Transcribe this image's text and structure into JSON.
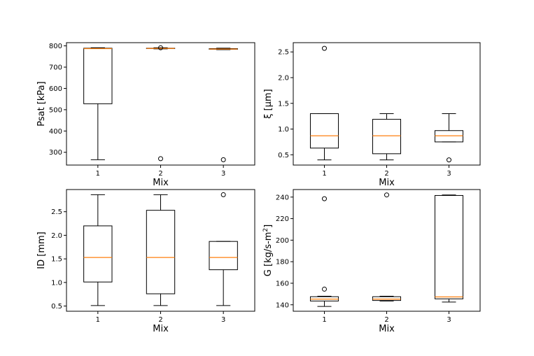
{
  "chart_data": [
    {
      "type": "box",
      "xlabel": "Mix",
      "ylabel": "Psat [kPa]",
      "categories": [
        "1",
        "2",
        "3"
      ],
      "ylim": [
        240,
        815
      ],
      "yticks": [
        300,
        400,
        500,
        600,
        700,
        800
      ],
      "ytick_labels": [
        "300",
        "400",
        "500",
        "600",
        "700",
        "800"
      ],
      "boxes": [
        {
          "whislo": 265,
          "q1": 528,
          "median": 787,
          "q3": 789,
          "whishi": 791,
          "fliers": []
        },
        {
          "whislo": 786,
          "q1": 787,
          "median": 788,
          "q3": 789,
          "whishi": 791,
          "fliers": [
            270,
            791
          ]
        },
        {
          "whislo": 782,
          "q1": 784,
          "median": 785,
          "q3": 787,
          "whishi": 789,
          "fliers": [
            265
          ]
        }
      ]
    },
    {
      "type": "box",
      "xlabel": "Mix",
      "ylabel": "ξ  [μm]",
      "categories": [
        "1",
        "2",
        "3"
      ],
      "ylim": [
        0.3,
        2.68
      ],
      "yticks": [
        0.5,
        1.0,
        1.5,
        2.0,
        2.5
      ],
      "ytick_labels": [
        "0.5",
        "1.0",
        "1.5",
        "2.0",
        "2.5"
      ],
      "boxes": [
        {
          "whislo": 0.4,
          "q1": 0.63,
          "median": 0.87,
          "q3": 1.3,
          "whishi": 1.3,
          "fliers": [
            2.57
          ]
        },
        {
          "whislo": 0.4,
          "q1": 0.52,
          "median": 0.87,
          "q3": 1.19,
          "whishi": 1.3,
          "fliers": []
        },
        {
          "whislo": 0.75,
          "q1": 0.75,
          "median": 0.87,
          "q3": 0.97,
          "whishi": 1.3,
          "fliers": [
            0.4
          ]
        }
      ]
    },
    {
      "type": "box",
      "xlabel": "Mix",
      "ylabel": "ID  [mm]",
      "categories": [
        "1",
        "2",
        "3"
      ],
      "ylim": [
        0.39,
        2.97
      ],
      "yticks": [
        0.5,
        1.0,
        1.5,
        2.0,
        2.5
      ],
      "ytick_labels": [
        "0.5",
        "1.0",
        "1.5",
        "2.0",
        "2.5"
      ],
      "boxes": [
        {
          "whislo": 0.51,
          "q1": 1.01,
          "median": 1.53,
          "q3": 2.2,
          "whishi": 2.86,
          "fliers": []
        },
        {
          "whislo": 0.51,
          "q1": 0.76,
          "median": 1.53,
          "q3": 2.53,
          "whishi": 2.86,
          "fliers": []
        },
        {
          "whislo": 0.51,
          "q1": 1.27,
          "median": 1.53,
          "q3": 1.87,
          "whishi": 1.87,
          "fliers": [
            2.86
          ]
        }
      ]
    },
    {
      "type": "box",
      "xlabel": "Mix",
      "ylabel": "G  [kg/s-m²]",
      "ylabel_main": "G  [kg/s-m",
      "ylabel_sup": "2",
      "ylabel_end": "]",
      "categories": [
        "1",
        "2",
        "3"
      ],
      "ylim": [
        134,
        247
      ],
      "yticks": [
        140,
        160,
        180,
        200,
        220,
        240
      ],
      "ytick_labels": [
        "140",
        "160",
        "180",
        "200",
        "220",
        "240"
      ],
      "boxes": [
        {
          "whislo": 138.5,
          "q1": 143.5,
          "median": 145.3,
          "q3": 147.5,
          "whishi": 148,
          "fliers": [
            154.5,
            238.5
          ]
        },
        {
          "whislo": 143.5,
          "q1": 144,
          "median": 145.3,
          "q3": 147.5,
          "whishi": 148,
          "fliers": [
            242
          ]
        },
        {
          "whislo": 142.5,
          "q1": 145.5,
          "median": 147.3,
          "q3": 241.5,
          "whishi": 242,
          "fliers": []
        }
      ]
    }
  ]
}
